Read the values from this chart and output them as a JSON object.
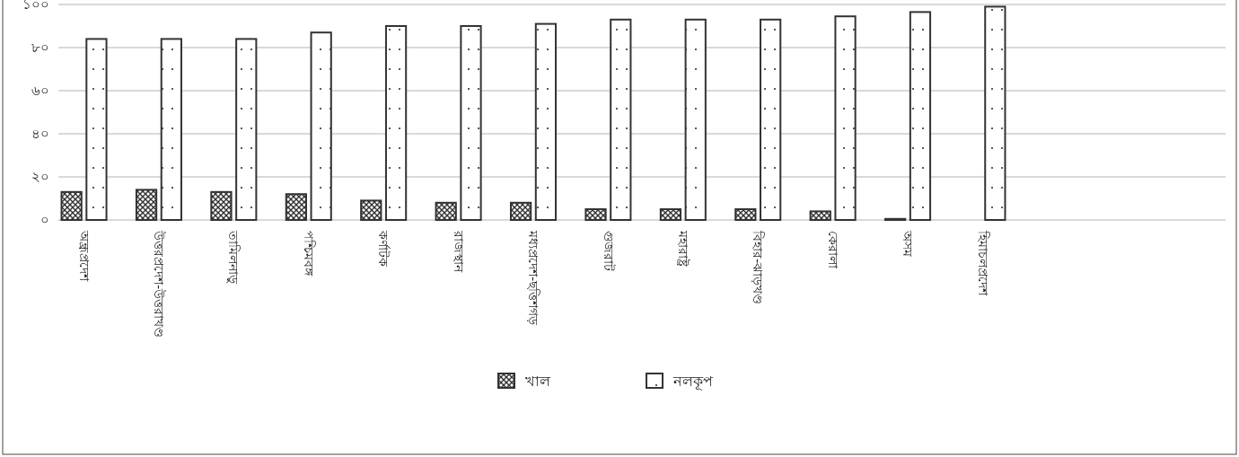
{
  "chart_data": {
    "type": "bar",
    "categories": [
      "অন্ধ্রপ্রদেশ",
      "উত্তরপ্রদেশ-উত্তরাখণ্ড",
      "তামিলনাড়ু",
      "পশ্চিমবঙ্গ",
      "কর্ণাটক",
      "রাজস্থান",
      "মধ্যপ্রদেশ-ছত্তিশগড়",
      "গুজরাট",
      "মহারাষ্ট্র",
      "বিহার-ঝাড়খণ্ড",
      "কেরালা",
      "অসম",
      "হিমাচলপ্রদেশ"
    ],
    "series": [
      {
        "name": "খাল",
        "color": "#333333",
        "values": [
          13,
          14,
          13,
          12,
          9,
          8,
          8,
          5,
          5,
          5,
          4,
          0.5,
          0
        ]
      },
      {
        "name": "নলকূপ",
        "color": "#333333",
        "values": [
          84,
          84,
          84,
          87,
          90,
          90,
          91,
          93,
          93,
          93,
          94.5,
          96.5,
          99
        ]
      }
    ],
    "ylim": [
      0,
      100
    ],
    "yticks": [
      {
        "value": 0,
        "label": "০"
      },
      {
        "value": 20,
        "label": "২০"
      },
      {
        "value": 40,
        "label": "৪০"
      },
      {
        "value": 60,
        "label": "৬০"
      },
      {
        "value": 80,
        "label": "৮০"
      },
      {
        "value": 100,
        "label": "১০০"
      }
    ],
    "grid": "y",
    "legend": "bottom"
  }
}
